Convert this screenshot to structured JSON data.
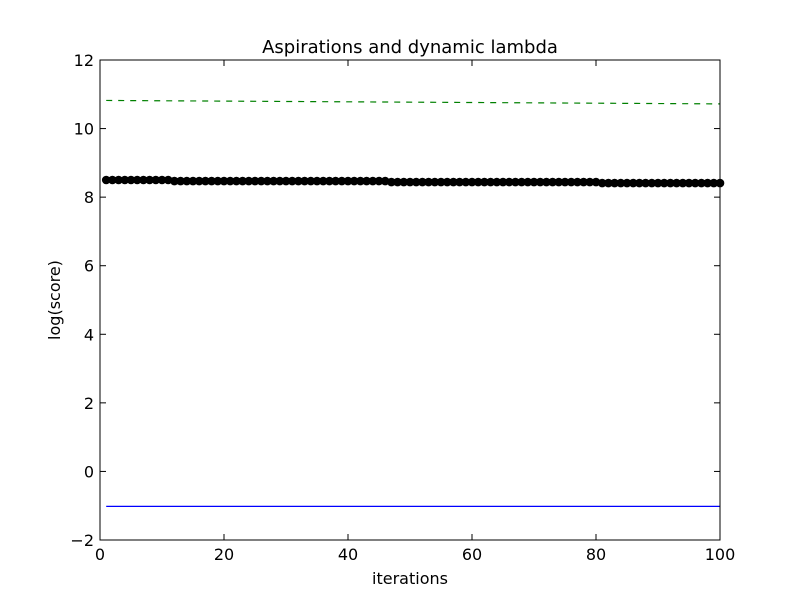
{
  "chart_data": {
    "type": "line",
    "title": "Aspirations and dynamic lambda",
    "xlabel": "iterations",
    "ylabel": "log(score)",
    "xlim": [
      0,
      100
    ],
    "ylim": [
      -2,
      12
    ],
    "x_ticks": [
      0,
      20,
      40,
      60,
      80,
      100
    ],
    "y_ticks": [
      -2,
      0,
      2,
      4,
      6,
      8,
      10,
      12
    ],
    "grid": false,
    "legend": "none",
    "series": [
      {
        "style": "dashed",
        "color": "#008000",
        "x": [
          1,
          100
        ],
        "values": [
          10.82,
          10.72
        ]
      },
      {
        "style": "markers",
        "color": "#000000",
        "x": [
          1,
          2,
          3,
          4,
          5,
          6,
          7,
          8,
          9,
          10,
          11,
          12,
          13,
          14,
          15,
          16,
          17,
          18,
          19,
          20,
          21,
          22,
          23,
          24,
          25,
          26,
          27,
          28,
          29,
          30,
          31,
          32,
          33,
          34,
          35,
          36,
          37,
          38,
          39,
          40,
          41,
          42,
          43,
          44,
          45,
          46,
          47,
          48,
          49,
          50,
          51,
          52,
          53,
          54,
          55,
          56,
          57,
          58,
          59,
          60,
          61,
          62,
          63,
          64,
          65,
          66,
          67,
          68,
          69,
          70,
          71,
          72,
          73,
          74,
          75,
          76,
          77,
          78,
          79,
          80,
          81,
          82,
          83,
          84,
          85,
          86,
          87,
          88,
          89,
          90,
          91,
          92,
          93,
          94,
          95,
          96,
          97,
          98,
          99,
          100
        ],
        "values": [
          8.5,
          8.5,
          8.5,
          8.5,
          8.5,
          8.5,
          8.5,
          8.5,
          8.5,
          8.5,
          8.5,
          8.47,
          8.47,
          8.47,
          8.47,
          8.47,
          8.47,
          8.47,
          8.47,
          8.47,
          8.47,
          8.47,
          8.47,
          8.47,
          8.47,
          8.47,
          8.47,
          8.47,
          8.47,
          8.47,
          8.47,
          8.47,
          8.47,
          8.47,
          8.47,
          8.47,
          8.47,
          8.47,
          8.47,
          8.47,
          8.47,
          8.47,
          8.47,
          8.47,
          8.47,
          8.47,
          8.44,
          8.44,
          8.44,
          8.44,
          8.44,
          8.44,
          8.44,
          8.44,
          8.44,
          8.44,
          8.44,
          8.44,
          8.44,
          8.44,
          8.44,
          8.44,
          8.44,
          8.44,
          8.44,
          8.44,
          8.44,
          8.44,
          8.44,
          8.44,
          8.44,
          8.44,
          8.44,
          8.44,
          8.44,
          8.44,
          8.44,
          8.44,
          8.44,
          8.44,
          8.41,
          8.41,
          8.41,
          8.41,
          8.41,
          8.41,
          8.41,
          8.41,
          8.41,
          8.41,
          8.41,
          8.41,
          8.41,
          8.41,
          8.41,
          8.41,
          8.41,
          8.41,
          8.41,
          8.41
        ]
      },
      {
        "style": "solid",
        "color": "#0000ff",
        "x": [
          1,
          100
        ],
        "values": [
          -1.02,
          -1.02
        ]
      }
    ]
  }
}
